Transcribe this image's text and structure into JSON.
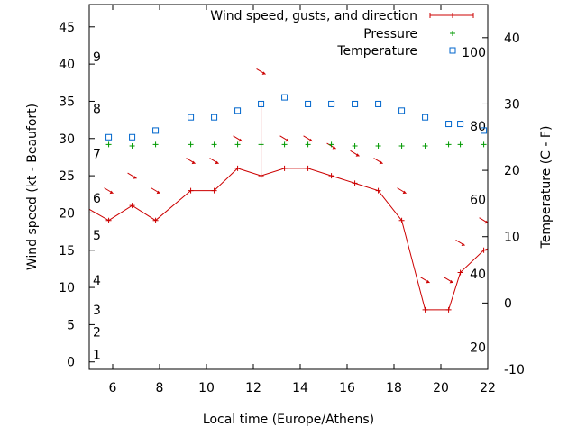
{
  "chart_data": {
    "type": "line",
    "title": "",
    "xlabel": "Local time (Europe/Athens)",
    "ylabel": "Wind speed (kt - Beaufort)",
    "y2label": "Temperature (C - F)",
    "xlim": [
      5,
      22
    ],
    "ylim": [
      -1,
      48
    ],
    "y2lim": [
      -10,
      45
    ],
    "x_ticks": [
      6,
      8,
      10,
      12,
      14,
      16,
      18,
      20,
      22
    ],
    "y_ticks": [
      0,
      5,
      10,
      15,
      20,
      25,
      30,
      35,
      40,
      45
    ],
    "y2_ticks": [
      -10,
      0,
      10,
      20,
      30,
      40
    ],
    "beaufort_labels": [
      {
        "text": "1",
        "y": 1
      },
      {
        "text": "2",
        "y": 4
      },
      {
        "text": "3",
        "y": 7
      },
      {
        "text": "4",
        "y": 11
      },
      {
        "text": "5",
        "y": 17
      },
      {
        "text": "6",
        "y": 22
      },
      {
        "text": "7",
        "y": 28
      },
      {
        "text": "8",
        "y": 34
      },
      {
        "text": "9",
        "y": 41
      }
    ],
    "fahrenheit_labels": [
      {
        "text": "20",
        "y2": -6.7
      },
      {
        "text": "40",
        "y2": 4.4
      },
      {
        "text": "60",
        "y2": 15.6
      },
      {
        "text": "80",
        "y2": 26.7
      },
      {
        "text": "100",
        "y2": 37.8
      }
    ],
    "legend": {
      "placement": "top-right",
      "entries": [
        "Wind speed, gusts, and direction",
        "Pressure",
        "Temperature"
      ]
    },
    "colors": {
      "wind": "#cc0000",
      "pressure": "#009900",
      "temperature": "#0066cc"
    },
    "wind": {
      "name": "Wind speed, gusts, and direction",
      "x": [
        5,
        5.83,
        6.83,
        7.83,
        9.33,
        10.33,
        11.33,
        12.33,
        13.33,
        14.33,
        15.33,
        16.33,
        17.33,
        18.33,
        19.33,
        20.33,
        20.83,
        21.83,
        22
      ],
      "values": [
        20.5,
        19,
        21,
        19,
        23,
        23,
        26,
        25,
        26,
        26,
        25,
        24,
        23,
        19,
        7,
        7,
        12,
        15,
        15.2
      ]
    },
    "gusts": [
      {
        "x": 12.33,
        "value": 35
      }
    ],
    "wind_direction_arrows": [
      {
        "x": 5.83,
        "y": 23
      },
      {
        "x": 6.83,
        "y": 25
      },
      {
        "x": 7.83,
        "y": 23
      },
      {
        "x": 9.33,
        "y": 27
      },
      {
        "x": 10.33,
        "y": 27
      },
      {
        "x": 11.33,
        "y": 30
      },
      {
        "x": 12.33,
        "y": 39
      },
      {
        "x": 13.33,
        "y": 30
      },
      {
        "x": 14.33,
        "y": 30
      },
      {
        "x": 15.33,
        "y": 29
      },
      {
        "x": 16.33,
        "y": 28
      },
      {
        "x": 17.33,
        "y": 27
      },
      {
        "x": 18.33,
        "y": 23
      },
      {
        "x": 19.33,
        "y": 11
      },
      {
        "x": 20.33,
        "y": 11
      },
      {
        "x": 20.83,
        "y": 16
      },
      {
        "x": 21.83,
        "y": 19
      }
    ],
    "pressure": {
      "name": "Pressure",
      "x": [
        5.83,
        6.83,
        7.83,
        9.33,
        10.33,
        11.33,
        12.33,
        13.33,
        14.33,
        15.33,
        16.33,
        17.33,
        18.33,
        19.33,
        20.33,
        20.83,
        21.83
      ],
      "y": [
        29.2,
        29.0,
        29.2,
        29.2,
        29.2,
        29.2,
        29.2,
        29.2,
        29.2,
        29.2,
        29.0,
        29.0,
        29.0,
        29.0,
        29.2,
        29.2,
        29.2
      ]
    },
    "temperature": {
      "name": "Temperature",
      "x": [
        5.83,
        6.83,
        7.83,
        9.33,
        10.33,
        11.33,
        12.33,
        13.33,
        14.33,
        15.33,
        16.33,
        17.33,
        18.33,
        19.33,
        20.33,
        20.83,
        21.83
      ],
      "values": [
        25,
        25,
        26,
        28,
        28,
        29,
        30,
        31,
        30,
        30,
        30,
        30,
        29,
        28,
        27,
        27,
        26
      ]
    }
  }
}
